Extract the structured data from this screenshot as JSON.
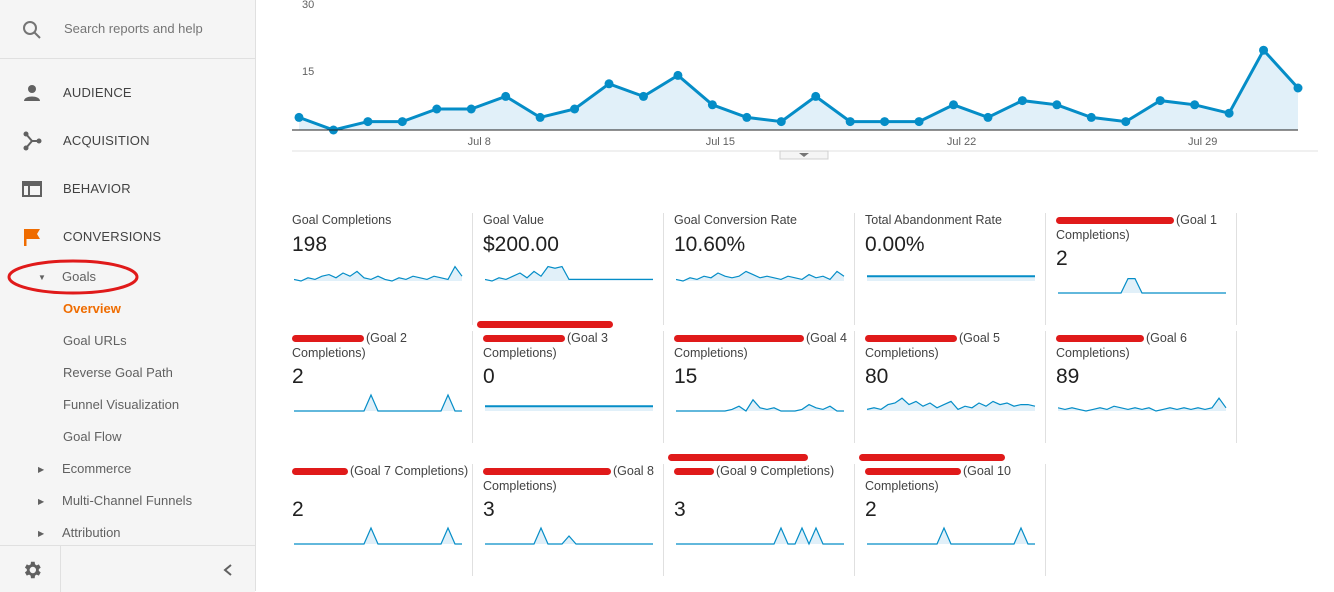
{
  "search": {
    "placeholder": "Search reports and help"
  },
  "nav": {
    "audience": "AUDIENCE",
    "acquisition": "ACQUISITION",
    "behavior": "BEHAVIOR",
    "conversions": "CONVERSIONS",
    "goals": "Goals",
    "goal_items": [
      "Overview",
      "Goal URLs",
      "Reverse Goal Path",
      "Funnel Visualization",
      "Goal Flow"
    ],
    "collapsed": [
      "Ecommerce",
      "Multi-Channel Funnels",
      "Attribution"
    ]
  },
  "colors": {
    "accent": "#ef6c00",
    "line": "#058dc7",
    "fill": "#e1f0f9",
    "redaction": "#e01a1a"
  },
  "icons": [
    "search-icon",
    "person-icon",
    "acquisition-icon",
    "behavior-icon",
    "flag-icon",
    "gear-icon",
    "chevron-left-icon"
  ],
  "chart_data": {
    "type": "area",
    "yticks": [
      "30",
      "15"
    ],
    "ylim": [
      0,
      30
    ],
    "xticks": [
      "Jul 8",
      "Jul 15",
      "Jul 22",
      "Jul 29"
    ],
    "xtick_index": [
      5,
      12,
      19,
      26
    ],
    "values": [
      3,
      0,
      2,
      2,
      5,
      5,
      8,
      3,
      5,
      11,
      8,
      13,
      6,
      3,
      2,
      8,
      2,
      2,
      2,
      6,
      3,
      7,
      6,
      3,
      2,
      7,
      6,
      4,
      19,
      10
    ],
    "grid": false
  },
  "tiles": [
    {
      "name": "Goal Completions",
      "value": "198"
    },
    {
      "name": "Goal Value",
      "value": "$200.00"
    },
    {
      "name": "Goal Conversion Rate",
      "value": "10.60%"
    },
    {
      "name": "Total Abandonment Rate",
      "value": "0.00%"
    },
    {
      "name": "(Goal 1 Completions)",
      "value": "2"
    },
    {
      "name": "(Goal 2 Completions)",
      "value": "2"
    },
    {
      "name": "(Goal 3 Completions)",
      "value": "0"
    },
    {
      "name": "(Goal 4 Completions)",
      "value": "15"
    },
    {
      "name": "(Goal 5 Completions)",
      "value": "80"
    },
    {
      "name": "(Goal 6 Completions)",
      "value": "89"
    },
    {
      "name": "(Goal 7 Completions)",
      "value": "2"
    },
    {
      "name": "(Goal 8 Completions)",
      "value": "3"
    },
    {
      "name": "(Goal 9 Completions)",
      "value": "3"
    },
    {
      "name": "(Goal 10 Completions)",
      "value": "2"
    }
  ]
}
